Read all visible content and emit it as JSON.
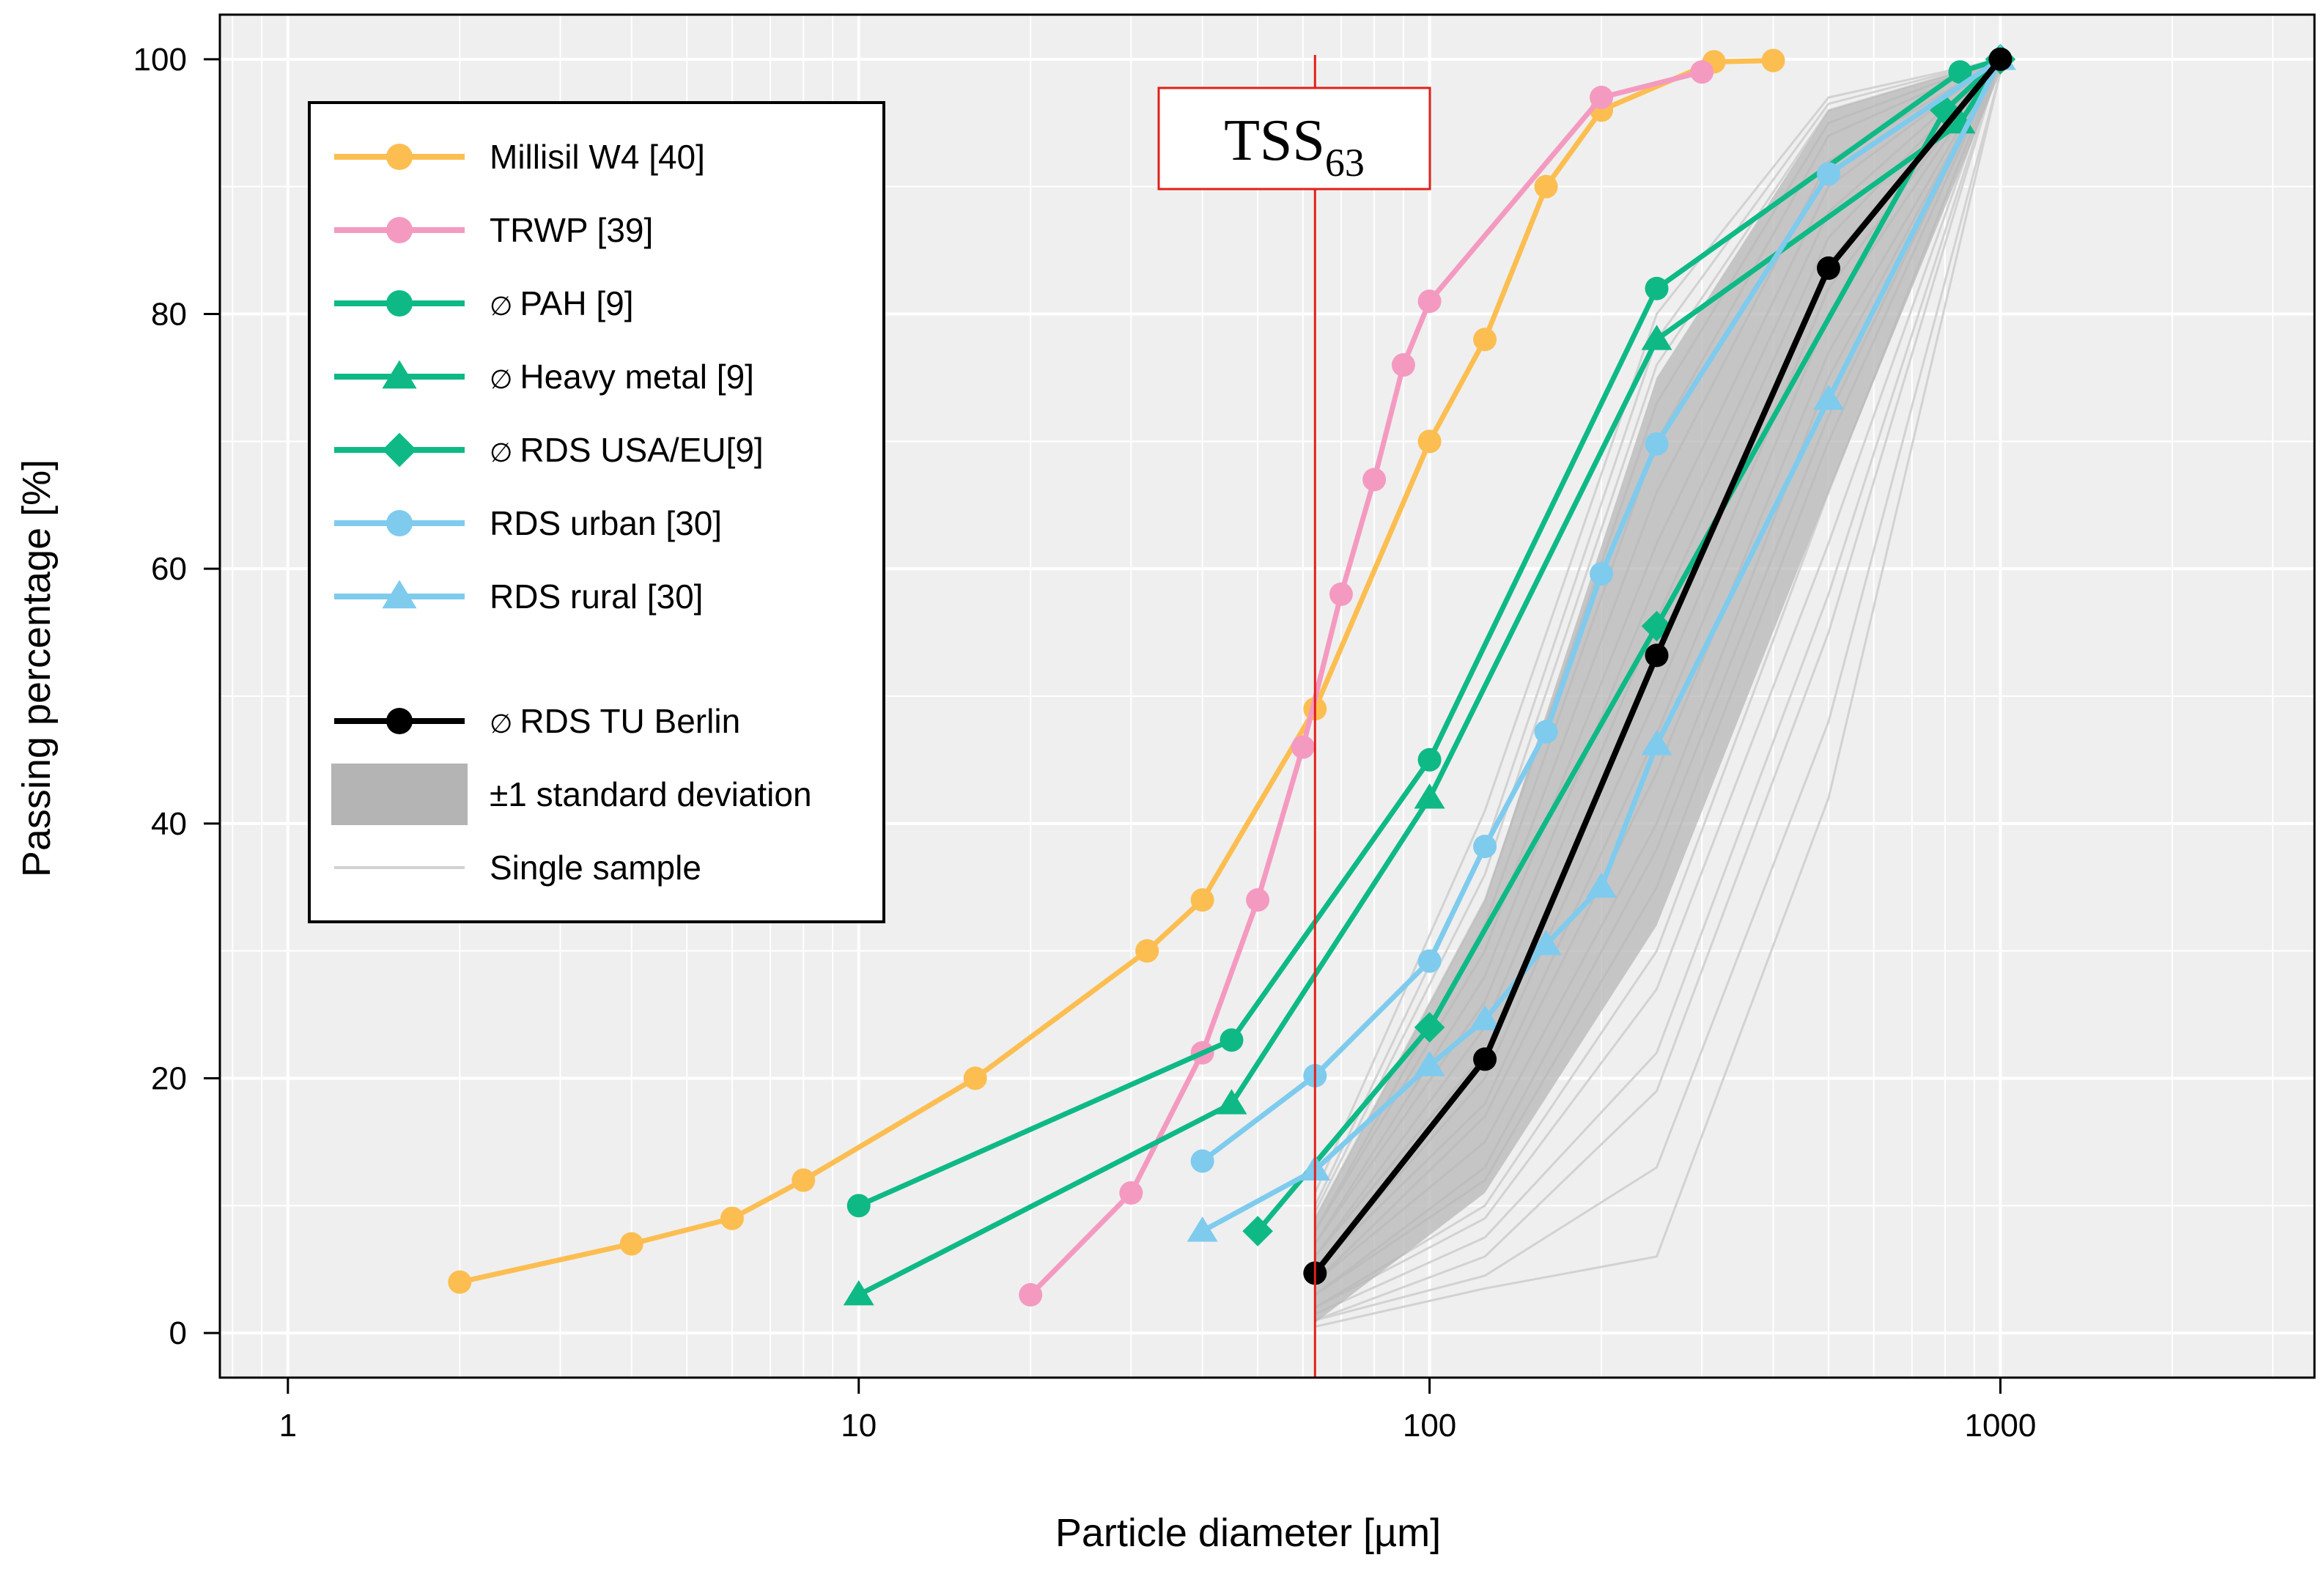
{
  "chart_data": {
    "type": "line",
    "xscale": "log",
    "xlim": [
      0.76,
      3550
    ],
    "ylim": [
      -3.5,
      103.5
    ],
    "xlabel": "Particle diameter [µm]",
    "ylabel": "Passing percentage [%]",
    "xticks": [
      1,
      10,
      100,
      1000
    ],
    "xtick_labels": [
      "1",
      "10",
      "100",
      "1000"
    ],
    "yticks": [
      0,
      20,
      40,
      60,
      80,
      100
    ],
    "ytick_labels": [
      "0",
      "20",
      "40",
      "60",
      "80",
      "100"
    ],
    "grid": true,
    "vline": {
      "x": 63,
      "label": "TSS",
      "label_sub": "63",
      "color": "#e0201b"
    },
    "series": [
      {
        "name": "Millisil W4 [40]",
        "color": "#fcbe51",
        "marker": "circle",
        "x": [
          2,
          4,
          6,
          8,
          16,
          32,
          40,
          63,
          100,
          125,
          160,
          200,
          315,
          400
        ],
        "y": [
          4,
          7,
          9,
          12,
          20,
          30,
          34,
          49,
          70,
          78,
          90,
          96,
          99.8,
          99.9
        ]
      },
      {
        "name": "TRWP [39]",
        "color": "#f49ac1",
        "marker": "circle",
        "x": [
          20,
          30,
          40,
          50,
          60,
          70,
          80,
          90,
          100,
          200,
          300
        ],
        "y": [
          3,
          11,
          22,
          34,
          46,
          58,
          67,
          76,
          81,
          97,
          99
        ]
      },
      {
        "name": "PAH [9]",
        "prefix": "∅",
        "color": "#0eb986",
        "marker": "circle",
        "x": [
          10,
          45,
          100,
          250,
          850,
          1000
        ],
        "y": [
          10,
          23,
          45,
          82,
          99,
          100
        ]
      },
      {
        "name": "Heavy metal [9]",
        "prefix": "∅",
        "color": "#0eb986",
        "marker": "triangle",
        "x": [
          10,
          45,
          100,
          250,
          850,
          1000
        ],
        "y": [
          3,
          18,
          42,
          78,
          95,
          100
        ]
      },
      {
        "name": "RDS USA/EU[9]",
        "prefix": "∅",
        "color": "#0eb986",
        "marker": "diamond",
        "x": [
          50,
          100,
          250,
          800,
          1000
        ],
        "y": [
          8,
          24,
          55.5,
          96,
          100
        ]
      },
      {
        "name": "RDS urban [30]",
        "color": "#7ecbee",
        "marker": "circle",
        "x": [
          40,
          63,
          100,
          125,
          160,
          200,
          250,
          500,
          1000
        ],
        "y": [
          13.5,
          20.2,
          29.2,
          38.2,
          47.2,
          59.6,
          69.8,
          91,
          100
        ]
      },
      {
        "name": "RDS rural [30]",
        "color": "#7ecbee",
        "marker": "triangle",
        "x": [
          40,
          63,
          100,
          125,
          160,
          200,
          250,
          500,
          1000
        ],
        "y": [
          8,
          12.8,
          21,
          24.6,
          30.5,
          35,
          46.2,
          73.3,
          100
        ]
      },
      {
        "name": "RDS TU Berlin",
        "prefix": "∅",
        "color": "#000000",
        "marker": "circle",
        "x": [
          63,
          125,
          250,
          500,
          1000
        ],
        "y": [
          4.7,
          21.5,
          53.2,
          83.6,
          100
        ]
      }
    ],
    "std_band": {
      "name": "±1 standard deviation",
      "color": "#b4b4b4",
      "x": [
        63,
        125,
        250,
        500,
        1000
      ],
      "lower": [
        0.8,
        11,
        32,
        66,
        99
      ],
      "upper": [
        9,
        34,
        75,
        96,
        100
      ]
    },
    "single_samples": {
      "name": "Single sample",
      "color": "#d2d2d2",
      "x": [
        63,
        125,
        250,
        500,
        1000
      ],
      "samples": [
        [
          0.5,
          3.5,
          6,
          42,
          99
        ],
        [
          1,
          4.5,
          13,
          48,
          99
        ],
        [
          1,
          6,
          19,
          55,
          100
        ],
        [
          1.5,
          7.5,
          22,
          58,
          100
        ],
        [
          2,
          9,
          27,
          62,
          100
        ],
        [
          2,
          10,
          30,
          66,
          100
        ],
        [
          3,
          12,
          35,
          70,
          100
        ],
        [
          3,
          13,
          38,
          72,
          100
        ],
        [
          4,
          15,
          40,
          75,
          100
        ],
        [
          4,
          17,
          44,
          77,
          100
        ],
        [
          5,
          18,
          47,
          80,
          100
        ],
        [
          5,
          20,
          50,
          82,
          100
        ],
        [
          6,
          22,
          53,
          84,
          100
        ],
        [
          6,
          24,
          56,
          86,
          100
        ],
        [
          7,
          26,
          59,
          88,
          100
        ],
        [
          7,
          28,
          62,
          90,
          100
        ],
        [
          8,
          30,
          66,
          92,
          100
        ],
        [
          8,
          32,
          70,
          94,
          100
        ],
        [
          9,
          34,
          73,
          95,
          100
        ],
        [
          9.5,
          36,
          76,
          96,
          100
        ],
        [
          10,
          38,
          78,
          96.5,
          100
        ],
        [
          11,
          41,
          80,
          97,
          100
        ]
      ]
    },
    "legend": {
      "position": "top-left",
      "entries": [
        {
          "prefix": "",
          "label": "Millisil W4 [40]",
          "kind": "line",
          "marker": "circle",
          "color": "#fcbe51"
        },
        {
          "prefix": "",
          "label": "TRWP [39]",
          "kind": "line",
          "marker": "circle",
          "color": "#f49ac1"
        },
        {
          "prefix": "∅",
          "label": "PAH [9]",
          "kind": "line",
          "marker": "circle",
          "color": "#0eb986"
        },
        {
          "prefix": "∅",
          "label": "Heavy metal [9]",
          "kind": "line",
          "marker": "triangle",
          "color": "#0eb986"
        },
        {
          "prefix": "∅",
          "label": "RDS USA/EU[9]",
          "kind": "line",
          "marker": "diamond",
          "color": "#0eb986"
        },
        {
          "prefix": "",
          "label": "RDS urban [30]",
          "kind": "line",
          "marker": "circle",
          "color": "#7ecbee"
        },
        {
          "prefix": "",
          "label": "RDS rural [30]",
          "kind": "line",
          "marker": "triangle",
          "color": "#7ecbee"
        },
        {
          "prefix": "∅",
          "label": "RDS TU Berlin",
          "kind": "line",
          "marker": "circle",
          "color": "#000000"
        },
        {
          "prefix": "",
          "label": "±1 standard deviation",
          "kind": "band",
          "marker": "",
          "color": "#b4b4b4"
        },
        {
          "prefix": "",
          "label": "Single sample",
          "kind": "thin",
          "marker": "",
          "color": "#d2d2d2"
        }
      ]
    }
  }
}
